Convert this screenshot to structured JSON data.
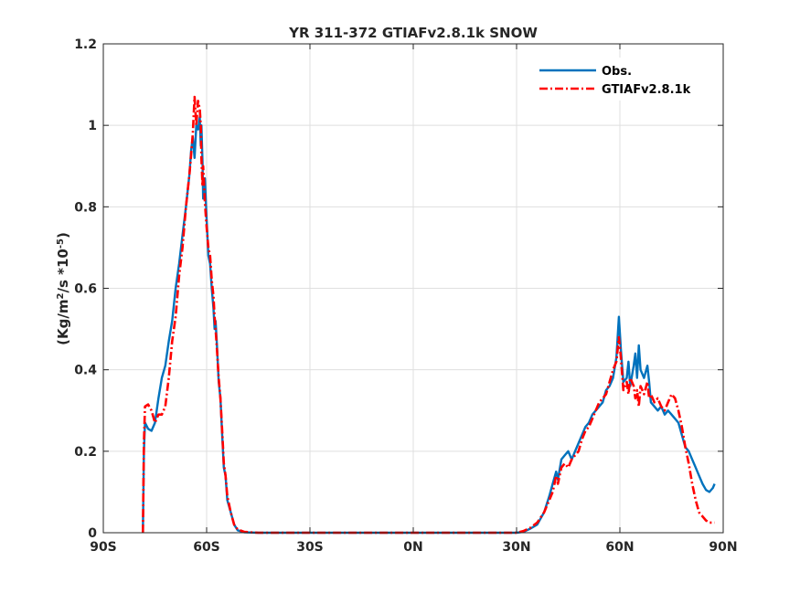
{
  "chart_data": {
    "type": "line",
    "title": "YR 311-372 GTIAFv2.8.1k SNOW",
    "xlabel": "",
    "ylabel_parts": {
      "base": "(Kg/m",
      "sup1": "2",
      "mid": "/s *10",
      "sup2": "-5",
      "end": ")"
    },
    "xlim": [
      -90,
      90
    ],
    "ylim": [
      0,
      1.2
    ],
    "xticks": [
      -90,
      -60,
      -30,
      0,
      30,
      60,
      90
    ],
    "xtick_labels": [
      "90S",
      "60S",
      "30S",
      "0N",
      "30N",
      "60N",
      "90N"
    ],
    "yticks": [
      0,
      0.2,
      0.4,
      0.6,
      0.8,
      1,
      1.2
    ],
    "ytick_labels": [
      "0",
      "0.2",
      "0.4",
      "0.6",
      "0.8",
      "1",
      "1.2"
    ],
    "grid": true,
    "legend_position": "top-right",
    "series": [
      {
        "name": "Obs.",
        "color": "#0072BD",
        "style": "solid",
        "points": [
          [
            -78.5,
            0
          ],
          [
            -78.2,
            0.2
          ],
          [
            -77.9,
            0.27
          ],
          [
            -77.0,
            0.255
          ],
          [
            -76.0,
            0.25
          ],
          [
            -75.0,
            0.27
          ],
          [
            -74.0,
            0.33
          ],
          [
            -73.0,
            0.38
          ],
          [
            -72.0,
            0.41
          ],
          [
            -71.0,
            0.47
          ],
          [
            -70.0,
            0.52
          ],
          [
            -69.0,
            0.6
          ],
          [
            -68.0,
            0.66
          ],
          [
            -67.0,
            0.73
          ],
          [
            -66.0,
            0.8
          ],
          [
            -65.0,
            0.88
          ],
          [
            -64.5,
            0.94
          ],
          [
            -64.0,
            0.97
          ],
          [
            -63.5,
            0.92
          ],
          [
            -63.0,
            1.0
          ],
          [
            -62.5,
            0.99
          ],
          [
            -62.0,
            1.02
          ],
          [
            -61.7,
            0.95
          ],
          [
            -61.5,
            1.0
          ],
          [
            -61.2,
            0.91
          ],
          [
            -61.0,
            0.82
          ],
          [
            -60.5,
            0.87
          ],
          [
            -60.0,
            0.77
          ],
          [
            -59.5,
            0.68
          ],
          [
            -59.0,
            0.66
          ],
          [
            -58.5,
            0.6
          ],
          [
            -58.0,
            0.55
          ],
          [
            -57.7,
            0.5
          ],
          [
            -57.4,
            0.52
          ],
          [
            -57.0,
            0.46
          ],
          [
            -56.5,
            0.37
          ],
          [
            -56.0,
            0.33
          ],
          [
            -55.5,
            0.24
          ],
          [
            -55.0,
            0.16
          ],
          [
            -54.5,
            0.14
          ],
          [
            -54.0,
            0.08
          ],
          [
            -53.0,
            0.05
          ],
          [
            -52.0,
            0.02
          ],
          [
            -51.0,
            0.006
          ],
          [
            -49.0,
            0.001
          ],
          [
            -45.0,
            0.0
          ],
          [
            -30.0,
            0.0
          ],
          [
            0.0,
            0.0
          ],
          [
            30.0,
            0.0
          ],
          [
            32.0,
            0.002
          ],
          [
            34.0,
            0.01
          ],
          [
            36.0,
            0.02
          ],
          [
            38.0,
            0.05
          ],
          [
            39.5,
            0.09
          ],
          [
            40.5,
            0.12
          ],
          [
            41.5,
            0.15
          ],
          [
            42.0,
            0.13
          ],
          [
            43.0,
            0.18
          ],
          [
            44.0,
            0.19
          ],
          [
            45.0,
            0.2
          ],
          [
            46.0,
            0.18
          ],
          [
            47.0,
            0.2
          ],
          [
            48.0,
            0.22
          ],
          [
            49.0,
            0.24
          ],
          [
            50.0,
            0.26
          ],
          [
            51.0,
            0.27
          ],
          [
            52.0,
            0.29
          ],
          [
            53.0,
            0.3
          ],
          [
            54.0,
            0.31
          ],
          [
            55.0,
            0.32
          ],
          [
            56.0,
            0.35
          ],
          [
            57.0,
            0.36
          ],
          [
            58.0,
            0.38
          ],
          [
            59.0,
            0.43
          ],
          [
            59.7,
            0.53
          ],
          [
            60.3,
            0.45
          ],
          [
            61.0,
            0.37
          ],
          [
            62.0,
            0.38
          ],
          [
            62.5,
            0.42
          ],
          [
            63.0,
            0.36
          ],
          [
            64.0,
            0.41
          ],
          [
            64.5,
            0.44
          ],
          [
            65.0,
            0.38
          ],
          [
            65.5,
            0.46
          ],
          [
            66.0,
            0.4
          ],
          [
            67.0,
            0.38
          ],
          [
            68.0,
            0.41
          ],
          [
            68.5,
            0.37
          ],
          [
            69.0,
            0.32
          ],
          [
            70.0,
            0.31
          ],
          [
            71.0,
            0.3
          ],
          [
            72.0,
            0.31
          ],
          [
            73.0,
            0.29
          ],
          [
            74.0,
            0.3
          ],
          [
            75.0,
            0.29
          ],
          [
            76.0,
            0.28
          ],
          [
            77.0,
            0.27
          ],
          [
            78.0,
            0.24
          ],
          [
            79.0,
            0.21
          ],
          [
            80.0,
            0.2
          ],
          [
            81.0,
            0.18
          ],
          [
            82.0,
            0.16
          ],
          [
            83.0,
            0.14
          ],
          [
            84.0,
            0.12
          ],
          [
            85.0,
            0.105
          ],
          [
            86.0,
            0.1
          ],
          [
            87.0,
            0.11
          ],
          [
            87.5,
            0.12
          ]
        ]
      },
      {
        "name": "GTIAFv2.8.1k",
        "color": "#FF0000",
        "style": "dashdot",
        "points": [
          [
            -78.5,
            0
          ],
          [
            -78.2,
            0.22
          ],
          [
            -77.9,
            0.31
          ],
          [
            -77.0,
            0.315
          ],
          [
            -76.0,
            0.3
          ],
          [
            -75.0,
            0.27
          ],
          [
            -74.0,
            0.29
          ],
          [
            -73.0,
            0.29
          ],
          [
            -72.0,
            0.31
          ],
          [
            -71.0,
            0.38
          ],
          [
            -70.0,
            0.47
          ],
          [
            -69.0,
            0.53
          ],
          [
            -68.0,
            0.63
          ],
          [
            -67.0,
            0.7
          ],
          [
            -66.0,
            0.8
          ],
          [
            -65.0,
            0.88
          ],
          [
            -64.5,
            0.93
          ],
          [
            -64.0,
            0.98
          ],
          [
            -63.5,
            1.07
          ],
          [
            -63.0,
            1.0
          ],
          [
            -62.5,
            1.06
          ],
          [
            -62.0,
            1.04
          ],
          [
            -61.7,
            1.0
          ],
          [
            -61.5,
            0.92
          ],
          [
            -61.2,
            0.85
          ],
          [
            -61.0,
            0.9
          ],
          [
            -60.5,
            0.81
          ],
          [
            -60.0,
            0.75
          ],
          [
            -59.5,
            0.7
          ],
          [
            -59.0,
            0.68
          ],
          [
            -58.5,
            0.62
          ],
          [
            -58.0,
            0.58
          ],
          [
            -57.7,
            0.53
          ],
          [
            -57.4,
            0.5
          ],
          [
            -57.0,
            0.45
          ],
          [
            -56.5,
            0.38
          ],
          [
            -56.0,
            0.33
          ],
          [
            -55.5,
            0.25
          ],
          [
            -55.0,
            0.17
          ],
          [
            -54.5,
            0.14
          ],
          [
            -54.0,
            0.09
          ],
          [
            -53.0,
            0.05
          ],
          [
            -52.0,
            0.02
          ],
          [
            -51.0,
            0.008
          ],
          [
            -49.0,
            0.002
          ],
          [
            -45.0,
            0.0
          ],
          [
            -30.0,
            0.0
          ],
          [
            0.0,
            0.0
          ],
          [
            30.0,
            0.0
          ],
          [
            32.0,
            0.004
          ],
          [
            34.0,
            0.012
          ],
          [
            36.0,
            0.025
          ],
          [
            38.0,
            0.05
          ],
          [
            39.5,
            0.08
          ],
          [
            40.5,
            0.1
          ],
          [
            41.5,
            0.14
          ],
          [
            42.0,
            0.12
          ],
          [
            43.0,
            0.16
          ],
          [
            44.0,
            0.17
          ],
          [
            45.0,
            0.16
          ],
          [
            46.0,
            0.18
          ],
          [
            47.0,
            0.19
          ],
          [
            48.0,
            0.2
          ],
          [
            49.0,
            0.23
          ],
          [
            50.0,
            0.25
          ],
          [
            51.0,
            0.26
          ],
          [
            52.0,
            0.28
          ],
          [
            53.0,
            0.3
          ],
          [
            54.0,
            0.32
          ],
          [
            55.0,
            0.33
          ],
          [
            56.0,
            0.34
          ],
          [
            57.0,
            0.37
          ],
          [
            58.0,
            0.4
          ],
          [
            59.0,
            0.42
          ],
          [
            59.7,
            0.48
          ],
          [
            60.3,
            0.43
          ],
          [
            61.0,
            0.35
          ],
          [
            62.0,
            0.37
          ],
          [
            62.5,
            0.34
          ],
          [
            63.0,
            0.38
          ],
          [
            64.0,
            0.36
          ],
          [
            64.5,
            0.33
          ],
          [
            65.0,
            0.35
          ],
          [
            65.5,
            0.31
          ],
          [
            66.0,
            0.36
          ],
          [
            67.0,
            0.34
          ],
          [
            68.0,
            0.37
          ],
          [
            68.5,
            0.33
          ],
          [
            69.0,
            0.34
          ],
          [
            70.0,
            0.32
          ],
          [
            71.0,
            0.33
          ],
          [
            72.0,
            0.31
          ],
          [
            73.0,
            0.3
          ],
          [
            74.0,
            0.32
          ],
          [
            75.0,
            0.34
          ],
          [
            76.0,
            0.33
          ],
          [
            77.0,
            0.3
          ],
          [
            78.0,
            0.26
          ],
          [
            79.0,
            0.21
          ],
          [
            80.0,
            0.17
          ],
          [
            81.0,
            0.12
          ],
          [
            82.0,
            0.08
          ],
          [
            83.0,
            0.05
          ],
          [
            84.0,
            0.04
          ],
          [
            85.0,
            0.03
          ],
          [
            86.0,
            0.025
          ],
          [
            87.0,
            0.025
          ],
          [
            87.5,
            0.025
          ]
        ]
      }
    ]
  }
}
